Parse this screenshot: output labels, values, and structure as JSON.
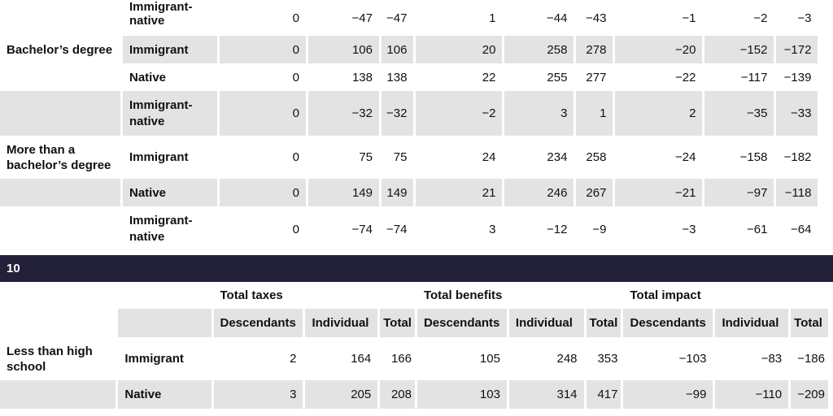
{
  "top_table": {
    "rows": [
      {
        "edu": "",
        "group": "Immigrant-native",
        "cells": [
          "0",
          "−47",
          "−47",
          "1",
          "−44",
          "−43",
          "−1",
          "−2",
          "−3"
        ]
      },
      {
        "edu": "Bachelor’s degree",
        "group": "Immigrant",
        "cells": [
          "0",
          "106",
          "106",
          "20",
          "258",
          "278",
          "−20",
          "−152",
          "−172"
        ]
      },
      {
        "edu": "",
        "group": "Native",
        "cells": [
          "0",
          "138",
          "138",
          "22",
          "255",
          "277",
          "−22",
          "−117",
          "−139"
        ]
      },
      {
        "edu": "",
        "group": "Immigrant-native",
        "cells": [
          "0",
          "−32",
          "−32",
          "−2",
          "3",
          "1",
          "2",
          "−35",
          "−33"
        ]
      },
      {
        "edu": "More than a bachelor’s degree",
        "group": "Immigrant",
        "cells": [
          "0",
          "75",
          "75",
          "24",
          "234",
          "258",
          "−24",
          "−158",
          "−182"
        ]
      },
      {
        "edu": "",
        "group": "Native",
        "cells": [
          "0",
          "149",
          "149",
          "21",
          "246",
          "267",
          "−21",
          "−97",
          "−118"
        ]
      },
      {
        "edu": "",
        "group": "Immigrant-native",
        "cells": [
          "0",
          "−74",
          "−74",
          "3",
          "−12",
          "−9",
          "−3",
          "−61",
          "−64"
        ]
      }
    ]
  },
  "section_label": "10",
  "bottom_table": {
    "group_headers": [
      "Total taxes",
      "Total benefits",
      "Total impact"
    ],
    "sub_headers": [
      "Descendants",
      "Individual",
      "Total",
      "Descendants",
      "Individual",
      "Total",
      "Descendants",
      "Individual",
      "Total"
    ],
    "rows": [
      {
        "edu": "Less than high school",
        "group": "Immigrant",
        "cells": [
          "2",
          "164",
          "166",
          "105",
          "248",
          "353",
          "−103",
          "−83",
          "−186"
        ]
      },
      {
        "edu": "",
        "group": "Native",
        "cells": [
          "3",
          "205",
          "208",
          "103",
          "314",
          "417",
          "−99",
          "−110",
          "−209"
        ]
      }
    ]
  }
}
